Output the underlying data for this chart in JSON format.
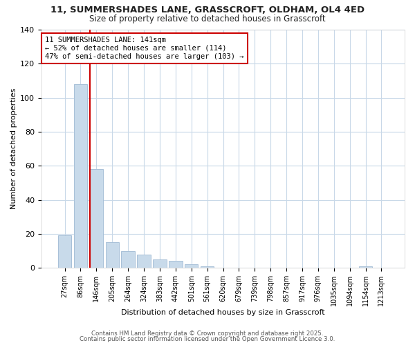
{
  "title_line1": "11, SUMMERSHADES LANE, GRASSCROFT, OLDHAM, OL4 4ED",
  "title_line2": "Size of property relative to detached houses in Grasscroft",
  "xlabel": "Distribution of detached houses by size in Grasscroft",
  "ylabel": "Number of detached properties",
  "categories": [
    "27sqm",
    "86sqm",
    "146sqm",
    "205sqm",
    "264sqm",
    "324sqm",
    "383sqm",
    "442sqm",
    "501sqm",
    "561sqm",
    "620sqm",
    "679sqm",
    "739sqm",
    "798sqm",
    "857sqm",
    "917sqm",
    "976sqm",
    "1035sqm",
    "1094sqm",
    "1154sqm",
    "1213sqm"
  ],
  "values": [
    19,
    108,
    58,
    15,
    10,
    8,
    5,
    4,
    2,
    1,
    0,
    0,
    0,
    0,
    0,
    0,
    0,
    0,
    0,
    1,
    0
  ],
  "bar_color": "#c8daea",
  "bar_edge_color": "#a8c0d8",
  "grid_color": "#c8d8e8",
  "background_color": "#ffffff",
  "plot_bg_color": "#ffffff",
  "red_line_x": 1.58,
  "annotation_text": "11 SUMMERSHADES LANE: 141sqm\n← 52% of detached houses are smaller (114)\n47% of semi-detached houses are larger (103) →",
  "annotation_box_facecolor": "#ffffff",
  "annotation_box_edgecolor": "#cc0000",
  "red_line_color": "#cc0000",
  "footer_line1": "Contains HM Land Registry data © Crown copyright and database right 2025.",
  "footer_line2": "Contains public sector information licensed under the Open Government Licence 3.0.",
  "ylim": [
    0,
    140
  ],
  "yticks": [
    0,
    20,
    40,
    60,
    80,
    100,
    120,
    140
  ]
}
